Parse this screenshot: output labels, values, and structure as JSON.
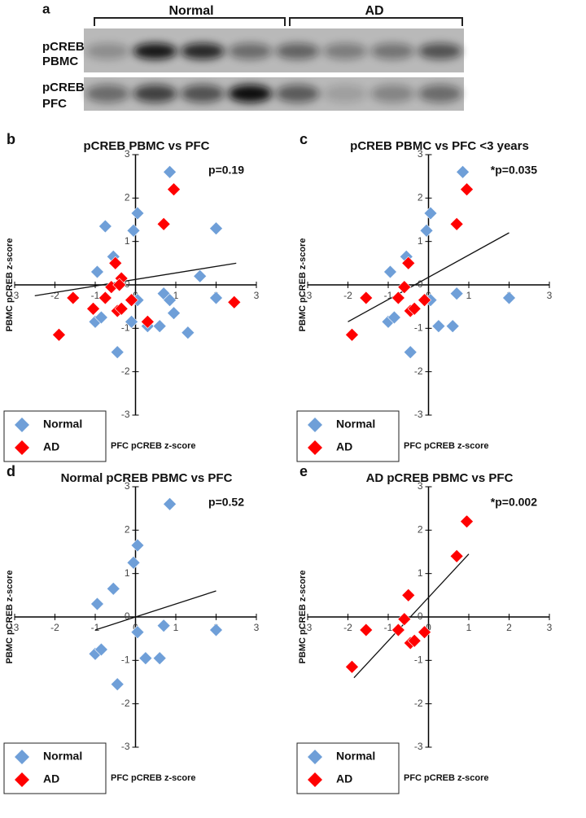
{
  "figure_a": {
    "label": "a",
    "groups": [
      "Normal",
      "AD"
    ],
    "rows": [
      [
        "pCREB",
        "PBMC"
      ],
      [
        "pCREB",
        "PFC"
      ]
    ]
  },
  "chart_data": [
    {
      "type": "scatter",
      "panel_label": "b",
      "title": "pCREB PBMC vs PFC",
      "annotation": "p=0.19",
      "x_label": "PFC pCREB z-score",
      "y_label": "PBMC pCREB z-score",
      "xlim": [
        -3,
        3
      ],
      "ylim": [
        -3,
        3
      ],
      "xticks": [
        -3,
        -2,
        -1,
        0,
        1,
        2,
        3
      ],
      "yticks": [
        -3,
        -2,
        -1,
        0,
        1,
        2,
        3
      ],
      "legend": "lower left",
      "trendline": {
        "x": [
          -2.5,
          2.5
        ],
        "y": [
          -0.25,
          0.5
        ]
      },
      "series": [
        {
          "name": "Normal",
          "color": "#6f9fd8",
          "x": [
            0.85,
            0.05,
            -0.05,
            -0.75,
            2.0,
            -0.55,
            -0.95,
            1.6,
            -1.0,
            -0.85,
            0.05,
            0.7,
            0.85,
            2.0,
            0.3,
            0.6,
            -0.1,
            0.95,
            1.3,
            -0.45
          ],
          "values": [
            2.6,
            1.65,
            1.25,
            1.35,
            1.3,
            0.65,
            0.3,
            0.2,
            -0.85,
            -0.75,
            -0.35,
            -0.2,
            -0.35,
            -0.3,
            -0.95,
            -0.95,
            -0.85,
            -0.65,
            -1.1,
            -1.55
          ]
        },
        {
          "name": "AD",
          "color": "#ff0000",
          "x": [
            0.95,
            0.7,
            -0.5,
            -0.35,
            -0.6,
            -0.4,
            -0.75,
            -0.1,
            -1.55,
            -1.05,
            -0.45,
            -0.35,
            0.3,
            2.45,
            -1.9
          ],
          "values": [
            2.2,
            1.4,
            0.5,
            0.15,
            -0.05,
            0.0,
            -0.3,
            -0.35,
            -0.3,
            -0.55,
            -0.6,
            -0.55,
            -0.85,
            -0.4,
            -1.15
          ]
        }
      ]
    },
    {
      "type": "scatter",
      "panel_label": "c",
      "title": "pCREB PBMC vs PFC <3 years",
      "annotation": "*p=0.035",
      "x_label": "PFC pCREB z-score",
      "y_label": "PBMC pCREB z-score",
      "xlim": [
        -3,
        3
      ],
      "ylim": [
        -3,
        3
      ],
      "xticks": [
        -3,
        -2,
        -1,
        0,
        1,
        2,
        3
      ],
      "yticks": [
        -3,
        -2,
        -1,
        0,
        1,
        2,
        3
      ],
      "legend": "lower left",
      "trendline": {
        "x": [
          -2.0,
          2.0
        ],
        "y": [
          -0.85,
          1.2
        ]
      },
      "series": [
        {
          "name": "Normal",
          "color": "#6f9fd8",
          "x": [
            0.85,
            0.05,
            -0.05,
            -0.55,
            -0.95,
            -1.0,
            -0.85,
            0.05,
            0.7,
            2.0,
            0.25,
            0.6,
            -0.45
          ],
          "values": [
            2.6,
            1.65,
            1.25,
            0.65,
            0.3,
            -0.85,
            -0.75,
            -0.35,
            -0.2,
            -0.3,
            -0.95,
            -0.95,
            -1.55
          ]
        },
        {
          "name": "AD",
          "color": "#ff0000",
          "x": [
            0.95,
            0.7,
            -0.5,
            -0.6,
            -0.75,
            -0.1,
            -1.55,
            -0.45,
            -0.35,
            -1.9
          ],
          "values": [
            2.2,
            1.4,
            0.5,
            -0.05,
            -0.3,
            -0.35,
            -0.3,
            -0.6,
            -0.55,
            -1.15
          ]
        }
      ]
    },
    {
      "type": "scatter",
      "panel_label": "d",
      "title": "Normal pCREB PBMC vs PFC",
      "annotation": "p=0.52",
      "x_label": "PFC pCREB z-score",
      "y_label": "PBMC pCREB z-score",
      "xlim": [
        -3,
        3
      ],
      "ylim": [
        -3,
        3
      ],
      "xticks": [
        -3,
        -2,
        -1,
        0,
        1,
        2,
        3
      ],
      "yticks": [
        -3,
        -2,
        -1,
        0,
        1,
        2,
        3
      ],
      "legend": "lower left",
      "trendline": {
        "x": [
          -1.0,
          2.0
        ],
        "y": [
          -0.3,
          0.6
        ]
      },
      "series": [
        {
          "name": "Normal",
          "color": "#6f9fd8",
          "x": [
            0.85,
            0.05,
            -0.05,
            -0.55,
            -0.95,
            -1.0,
            -0.85,
            0.05,
            0.7,
            2.0,
            0.25,
            0.6,
            -0.45
          ],
          "values": [
            2.6,
            1.65,
            1.25,
            0.65,
            0.3,
            -0.85,
            -0.75,
            -0.35,
            -0.2,
            -0.3,
            -0.95,
            -0.95,
            -1.55
          ]
        },
        {
          "name": "AD",
          "color": "#ff0000",
          "x": [],
          "values": []
        }
      ]
    },
    {
      "type": "scatter",
      "panel_label": "e",
      "title": "AD pCREB PBMC vs PFC",
      "annotation": "*p=0.002",
      "x_label": "PFC pCREB z-score",
      "y_label": "PBMC pCREB z-score",
      "xlim": [
        -3,
        3
      ],
      "ylim": [
        -3,
        3
      ],
      "xticks": [
        -3,
        -2,
        -1,
        0,
        1,
        2,
        3
      ],
      "yticks": [
        -3,
        -2,
        -1,
        0,
        1,
        2,
        3
      ],
      "legend": "lower left",
      "trendline": {
        "x": [
          -1.85,
          1.0
        ],
        "y": [
          -1.4,
          1.45
        ]
      },
      "series": [
        {
          "name": "Normal",
          "color": "#6f9fd8",
          "x": [],
          "values": []
        },
        {
          "name": "AD",
          "color": "#ff0000",
          "x": [
            0.95,
            0.7,
            -0.5,
            -0.6,
            -0.75,
            -0.1,
            -1.55,
            -0.45,
            -0.35,
            -1.9
          ],
          "values": [
            2.2,
            1.4,
            0.5,
            -0.05,
            -0.3,
            -0.35,
            -0.3,
            -0.6,
            -0.55,
            -1.15
          ]
        }
      ]
    }
  ]
}
